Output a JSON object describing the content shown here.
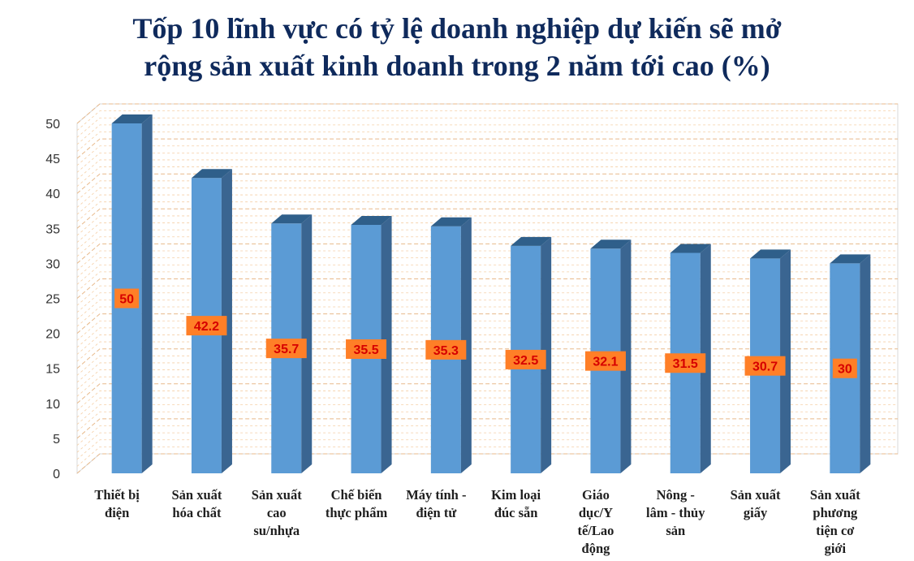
{
  "chart_data": {
    "type": "bar",
    "title_lines": [
      "Tốp 10 lĩnh vực có tỷ lệ doanh nghiệp dự kiến sẽ mở",
      "rộng sản xuất kinh doanh trong 2 năm tới cao (%)"
    ],
    "categories": [
      [
        "Thiết bị",
        "điện"
      ],
      [
        "Sản xuất",
        "hóa chất"
      ],
      [
        "Sản xuất",
        "cao",
        "su/nhựa"
      ],
      [
        "Chế biến",
        "thực phẩm"
      ],
      [
        "Máy tính -",
        "điện tử"
      ],
      [
        "Kim loại",
        "đúc sẵn"
      ],
      [
        "Giáo",
        "dục/Y",
        "tế/Lao",
        "động"
      ],
      [
        "Nông -",
        "lâm - thủy",
        "sản"
      ],
      [
        "Sản xuất",
        "giấy"
      ],
      [
        "Sản xuất",
        "phương",
        "tiện cơ",
        "giới"
      ]
    ],
    "values": [
      50,
      42.2,
      35.7,
      35.5,
      35.3,
      32.5,
      32.1,
      31.5,
      30.7,
      30
    ],
    "value_labels": [
      "50",
      "42.2",
      "35.7",
      "35.5",
      "35.3",
      "32.5",
      "32.1",
      "31.5",
      "30.7",
      "30"
    ],
    "y_ticks": [
      "0",
      "5",
      "10",
      "15",
      "20",
      "25",
      "30",
      "35",
      "40",
      "45",
      "50"
    ],
    "ylim": [
      0,
      50
    ],
    "xlabel": "",
    "ylabel": "",
    "legend": "none",
    "grid": true,
    "colors": {
      "bar_front": "#5b9bd5",
      "bar_side": "#3a6591",
      "bar_top": "#2f5f8a",
      "label_bg": "#ff7f27",
      "label_text": "#d60000",
      "gridline": "#f5cfa6",
      "title": "#0f2a5c"
    }
  }
}
